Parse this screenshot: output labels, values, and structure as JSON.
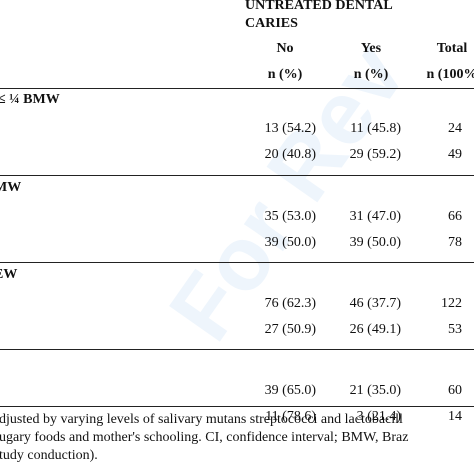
{
  "table": {
    "header": {
      "group": [
        "UNTREATED DENTAL",
        "CARIES"
      ],
      "columns": [
        "No",
        "Yes",
        "Total"
      ],
      "units": [
        "n (%)",
        "n (%)",
        "n (100%"
      ]
    },
    "groups": [
      {
        "label": "≤ ¼ BMW",
        "rows": [
          [
            "13 (54.2)",
            "11 (45.8)",
            "24"
          ],
          [
            "20 (40.8)",
            "29 (59.2)",
            "49"
          ]
        ]
      },
      {
        "label": "MW",
        "rows": [
          [
            "35 (53.0)",
            "31 (47.0)",
            "66"
          ],
          [
            "39 (50.0)",
            "39 (50.0)",
            "78"
          ]
        ]
      },
      {
        "label": "EW",
        "rows": [
          [
            "76 (62.3)",
            "46 (37.7)",
            "122"
          ],
          [
            "27 (50.9)",
            "26 (49.1)",
            "53"
          ]
        ]
      },
      {
        "label": null,
        "rows": [
          [
            "39 (65.0)",
            "21 (35.0)",
            "60"
          ],
          [
            "11 (78.6)",
            "3 (21.4)",
            "14"
          ]
        ]
      }
    ],
    "footnote": [
      "djusted by varying levels of salivary mutans streptococci and lactobacill",
      "ugary foods and mother's schooling. CI, confidence interval; BMW, Braz",
      "tudy conduction)."
    ],
    "watermark": "For Rev"
  }
}
